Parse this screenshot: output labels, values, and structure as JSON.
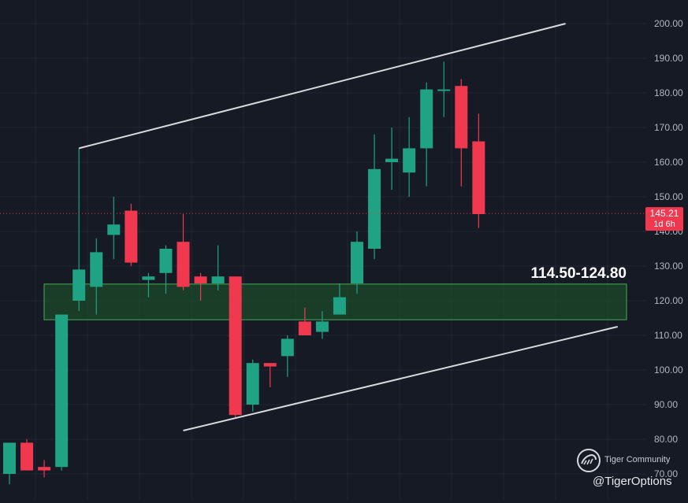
{
  "chart_data": {
    "type": "candlestick",
    "price_axis": {
      "ticks": [
        "200.00",
        "190.00",
        "180.00",
        "170.00",
        "160.00",
        "150.00",
        "140.00",
        "130.00",
        "120.00",
        "110.00",
        "100.00",
        "90.00",
        "80.00",
        "70.00"
      ],
      "range": [
        67,
        205
      ]
    },
    "grid": true,
    "candles": [
      {
        "o": 70,
        "h": 79,
        "l": 67,
        "c": 79
      },
      {
        "o": 79,
        "h": 80,
        "l": 71,
        "c": 71
      },
      {
        "o": 72,
        "h": 74,
        "l": 69,
        "c": 71
      },
      {
        "o": 72,
        "h": 116,
        "l": 71,
        "c": 116
      },
      {
        "o": 120,
        "h": 164,
        "l": 117,
        "c": 129
      },
      {
        "o": 124,
        "h": 138,
        "l": 116,
        "c": 134
      },
      {
        "o": 139,
        "h": 150,
        "l": 132,
        "c": 142
      },
      {
        "o": 146,
        "h": 148,
        "l": 130,
        "c": 131
      },
      {
        "o": 126,
        "h": 128,
        "l": 121,
        "c": 127
      },
      {
        "o": 128,
        "h": 136,
        "l": 122,
        "c": 135
      },
      {
        "o": 137,
        "h": 145,
        "l": 123,
        "c": 124
      },
      {
        "o": 127,
        "h": 128,
        "l": 120,
        "c": 125
      },
      {
        "o": 125,
        "h": 136,
        "l": 123,
        "c": 127
      },
      {
        "o": 127,
        "h": 127,
        "l": 86,
        "c": 87
      },
      {
        "o": 90,
        "h": 103,
        "l": 88,
        "c": 102
      },
      {
        "o": 102,
        "h": 102,
        "l": 95,
        "c": 101
      },
      {
        "o": 104,
        "h": 110,
        "l": 98,
        "c": 109
      },
      {
        "o": 114,
        "h": 118,
        "l": 110,
        "c": 110
      },
      {
        "o": 111,
        "h": 117,
        "l": 109,
        "c": 114
      },
      {
        "o": 116,
        "h": 125,
        "l": 116,
        "c": 121
      },
      {
        "o": 125,
        "h": 140,
        "l": 122,
        "c": 137
      },
      {
        "o": 135,
        "h": 168,
        "l": 132,
        "c": 158
      },
      {
        "o": 160,
        "h": 170,
        "l": 152,
        "c": 161
      },
      {
        "o": 157,
        "h": 173,
        "l": 150,
        "c": 164
      },
      {
        "o": 164,
        "h": 183,
        "l": 153,
        "c": 181
      },
      {
        "o": 181,
        "h": 189,
        "l": 173,
        "c": 181
      },
      {
        "o": 182,
        "h": 184,
        "l": 153,
        "c": 164
      },
      {
        "o": 166,
        "h": 174,
        "l": 141,
        "c": 145
      }
    ],
    "current_price": {
      "value": 145.21,
      "label": "145.21",
      "countdown": "1d 6h"
    },
    "zone": {
      "low": 114.5,
      "high": 124.8,
      "label": "114.50-124.80"
    },
    "trendlines": [
      {
        "x1": 4,
        "y1": 164,
        "x2": 32,
        "y2": 200
      },
      {
        "x1": 10,
        "y1": 82.5,
        "x2": 35,
        "y2": 112.5
      }
    ],
    "colors": {
      "background": "#161a25",
      "grid": "#232734",
      "up": "#1fa384",
      "down": "#f0394f",
      "trendline": "#d8dade",
      "zone_fill": "#1c4a2a",
      "zone_border": "#43b055",
      "price_badge": "#f0394f",
      "axis_text": "#b2b5be"
    }
  },
  "watermark": {
    "community": "Tiger Community",
    "handle": "@TigerOptions",
    "logo_icon": "tiger-community-logo-icon"
  }
}
